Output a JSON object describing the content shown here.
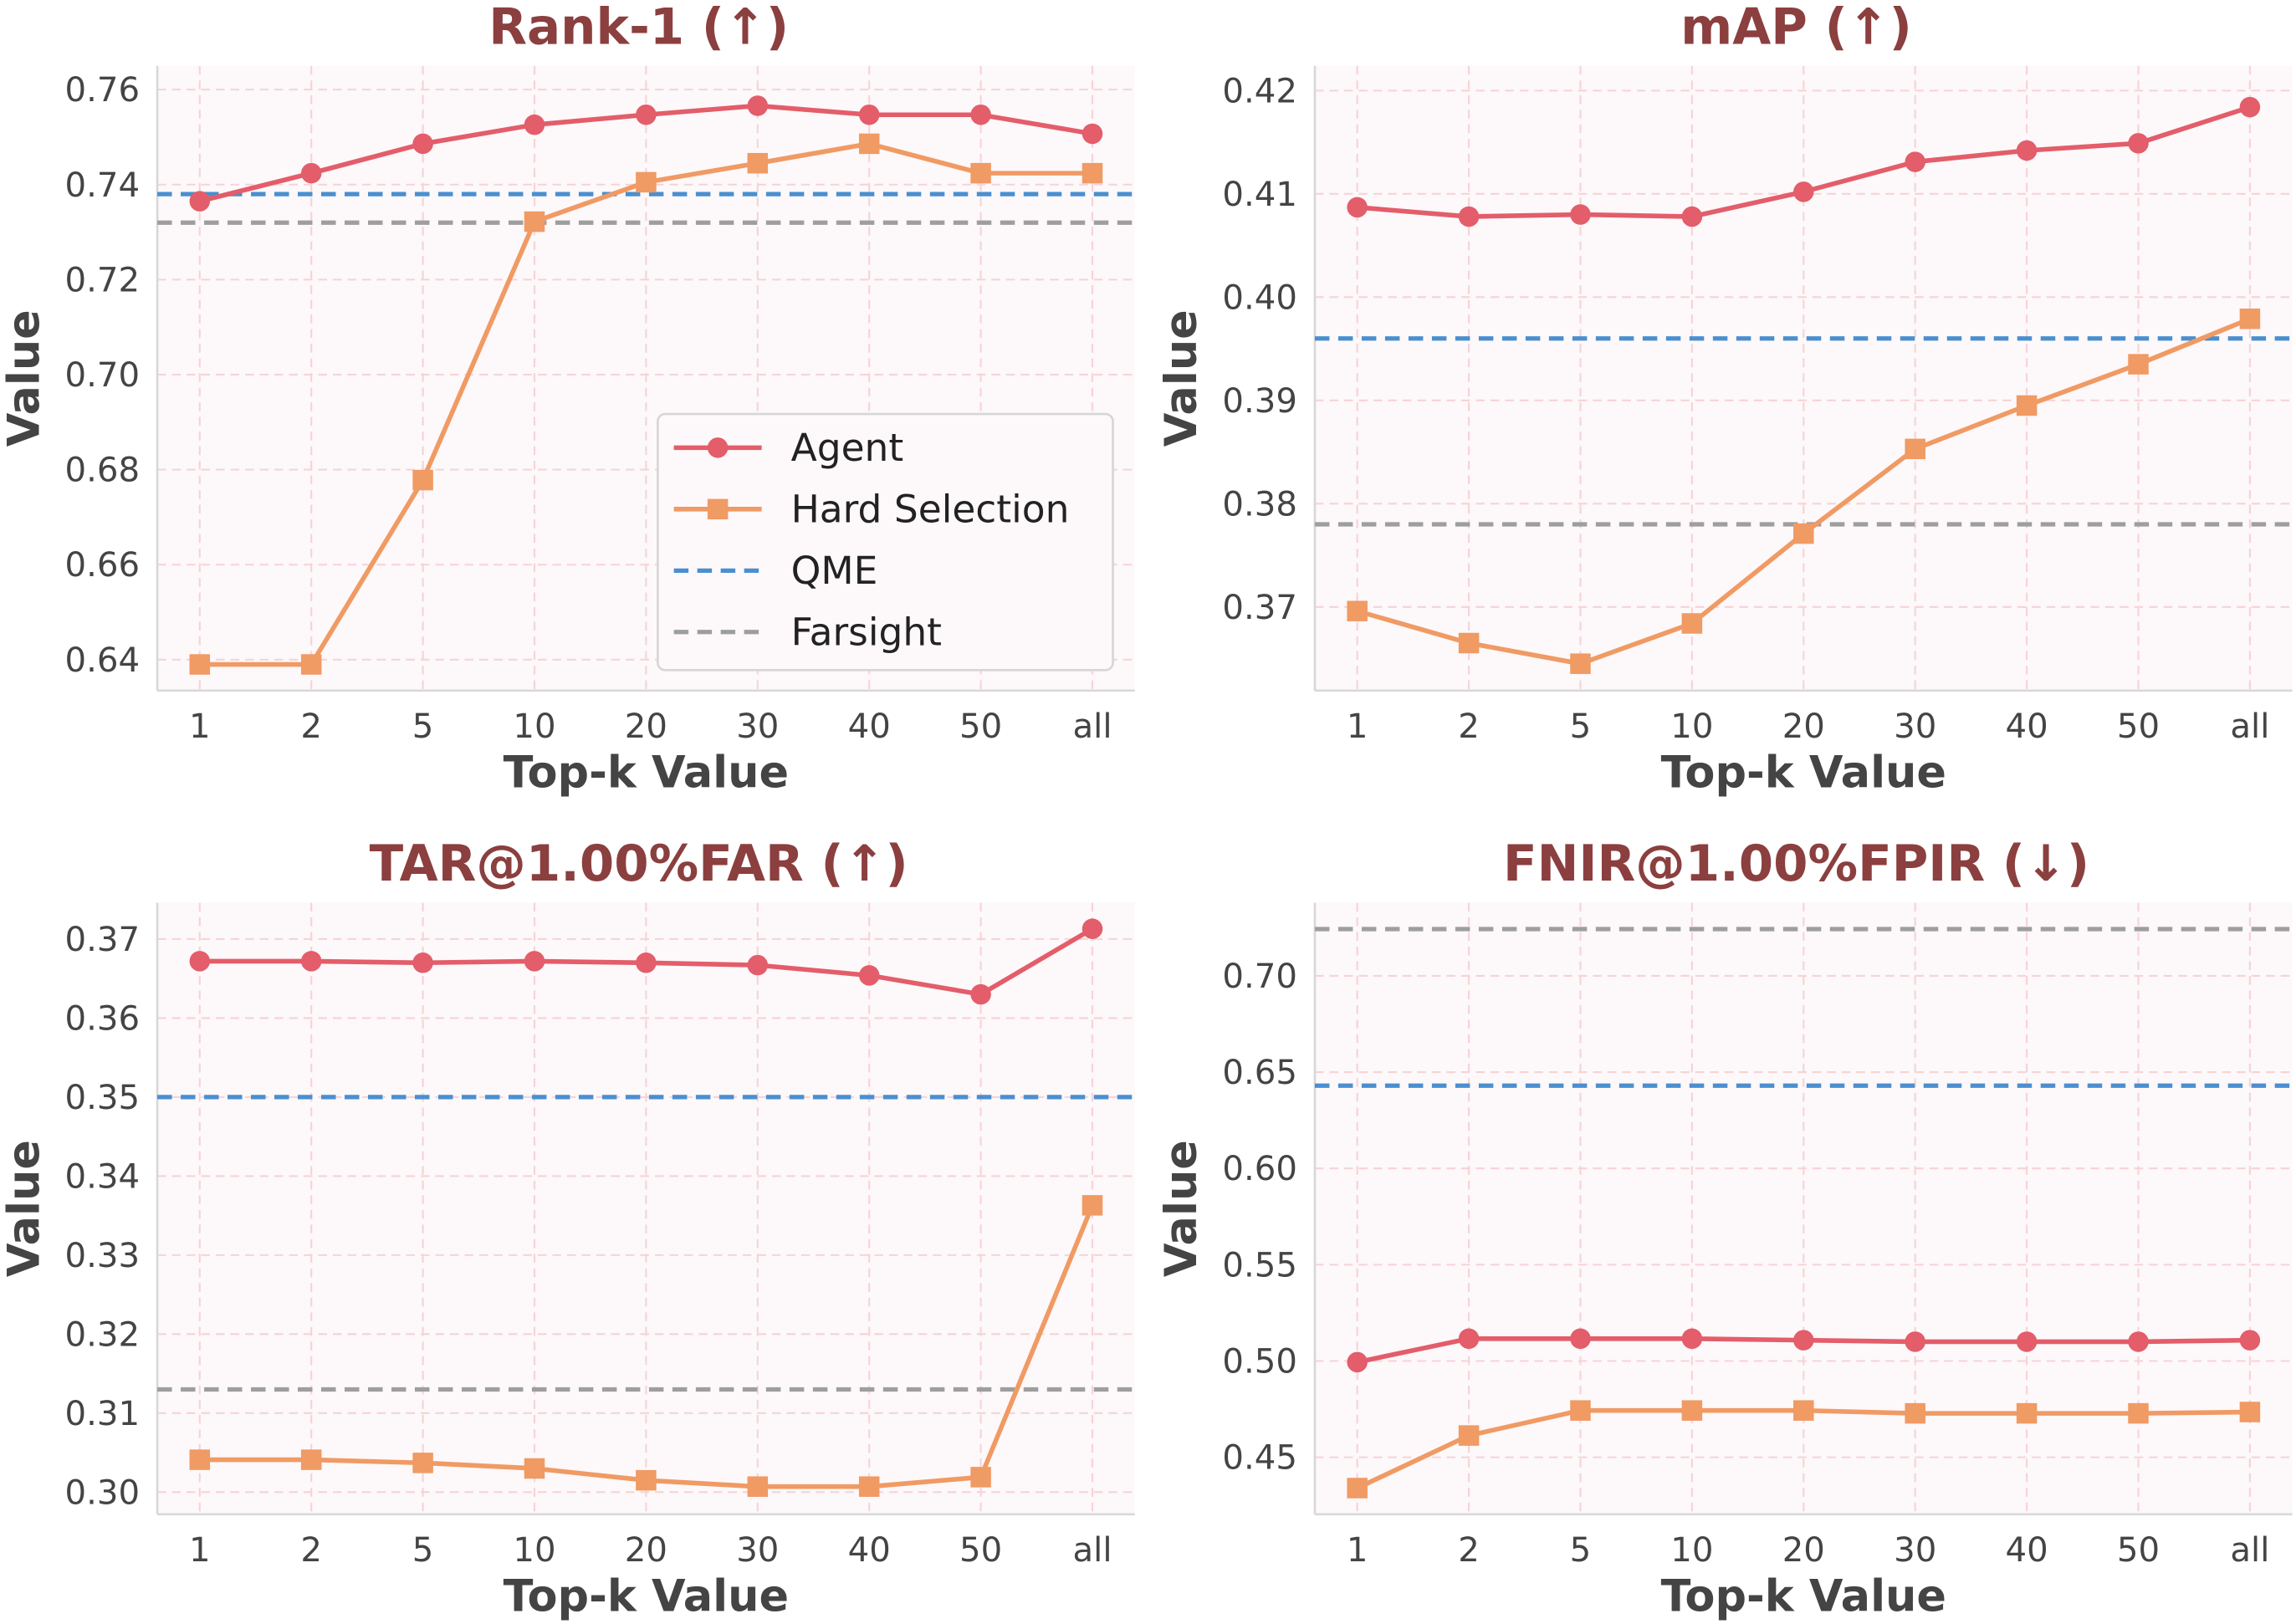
{
  "colors": {
    "agent": "#e35d6a",
    "hard": "#f09a64",
    "qme": "#4a8fd0",
    "farsight": "#9e9e9e",
    "title": "#8b3f3f",
    "plot_bg": "#fdf8f9",
    "grid": "#f6d3d6"
  },
  "legend": {
    "placement": "center-right of first panel",
    "entries": [
      "Agent",
      "Hard Selection",
      "QME",
      "Farsight"
    ]
  },
  "chart_data": [
    {
      "type": "line",
      "title": "Rank-1 (↑)",
      "xlabel": "Top-k Value",
      "ylabel": "Value",
      "categories": [
        "1",
        "2",
        "5",
        "10",
        "20",
        "30",
        "40",
        "50",
        "all"
      ],
      "yticks": [
        "0.64",
        "0.66",
        "0.68",
        "0.70",
        "0.72",
        "0.74",
        "0.76"
      ],
      "ylim": [
        0.6335,
        0.765
      ],
      "grid": true,
      "series": [
        {
          "name": "Agent",
          "marker": "circle",
          "values": [
            0.7365,
            0.7424,
            0.7486,
            0.7526,
            0.7547,
            0.7566,
            0.7547,
            0.7547,
            0.7507
          ]
        },
        {
          "name": "Hard Selection",
          "marker": "square",
          "values": [
            0.639,
            0.639,
            0.6778,
            0.7322,
            0.7405,
            0.7445,
            0.7486,
            0.7424,
            0.7424
          ]
        }
      ],
      "baselines": [
        {
          "name": "QME",
          "value": 0.738
        },
        {
          "name": "Farsight",
          "value": 0.732
        }
      ],
      "show_legend": true
    },
    {
      "type": "line",
      "title": "mAP (↑)",
      "xlabel": "Top-k Value",
      "ylabel": "Value",
      "categories": [
        "1",
        "2",
        "5",
        "10",
        "20",
        "30",
        "40",
        "50",
        "all"
      ],
      "yticks": [
        "0.37",
        "0.38",
        "0.39",
        "0.40",
        "0.41",
        "0.42"
      ],
      "ylim": [
        0.3619,
        0.4224
      ],
      "grid": true,
      "series": [
        {
          "name": "Agent",
          "marker": "circle",
          "values": [
            0.4087,
            0.4078,
            0.408,
            0.4078,
            0.4102,
            0.4131,
            0.4142,
            0.4149,
            0.4184
          ]
        },
        {
          "name": "Hard Selection",
          "marker": "square",
          "values": [
            0.3696,
            0.3665,
            0.3645,
            0.3684,
            0.3771,
            0.3853,
            0.3895,
            0.3935,
            0.3979
          ]
        }
      ],
      "baselines": [
        {
          "name": "QME",
          "value": 0.396
        },
        {
          "name": "Farsight",
          "value": 0.378
        }
      ],
      "show_legend": false
    },
    {
      "type": "line",
      "title": "TAR@1.00%FAR (↑)",
      "xlabel": "Top-k Value",
      "ylabel": "Value",
      "categories": [
        "1",
        "2",
        "5",
        "10",
        "20",
        "30",
        "40",
        "50",
        "all"
      ],
      "yticks": [
        "0.30",
        "0.31",
        "0.32",
        "0.33",
        "0.34",
        "0.35",
        "0.36",
        "0.37"
      ],
      "ylim": [
        0.2972,
        0.3746
      ],
      "grid": true,
      "series": [
        {
          "name": "Agent",
          "marker": "circle",
          "values": [
            0.3672,
            0.3672,
            0.367,
            0.3672,
            0.367,
            0.3667,
            0.3654,
            0.363,
            0.3713
          ]
        },
        {
          "name": "Hard Selection",
          "marker": "square",
          "values": [
            0.3041,
            0.3041,
            0.3037,
            0.303,
            0.3015,
            0.3007,
            0.3007,
            0.3019,
            0.3363
          ]
        }
      ],
      "baselines": [
        {
          "name": "QME",
          "value": 0.35
        },
        {
          "name": "Farsight",
          "value": 0.313
        }
      ],
      "show_legend": false
    },
    {
      "type": "line",
      "title": "FNIR@1.00%FPIR (↓)",
      "xlabel": "Top-k Value",
      "ylabel": "Value",
      "categories": [
        "1",
        "2",
        "5",
        "10",
        "20",
        "30",
        "40",
        "50",
        "all"
      ],
      "yticks": [
        "0.45",
        "0.50",
        "0.55",
        "0.60",
        "0.65",
        "0.70"
      ],
      "ylim": [
        0.4204,
        0.738
      ],
      "grid": true,
      "series": [
        {
          "name": "Agent",
          "marker": "circle",
          "values": [
            0.4994,
            0.5116,
            0.5116,
            0.5116,
            0.5108,
            0.51,
            0.51,
            0.51,
            0.5108
          ]
        },
        {
          "name": "Hard Selection",
          "marker": "square",
          "values": [
            0.434,
            0.4613,
            0.4743,
            0.4743,
            0.4743,
            0.4728,
            0.4728,
            0.4728,
            0.4735
          ]
        }
      ],
      "baselines": [
        {
          "name": "QME",
          "value": 0.643
        },
        {
          "name": "Farsight",
          "value": 0.7243
        }
      ],
      "show_legend": false
    }
  ]
}
